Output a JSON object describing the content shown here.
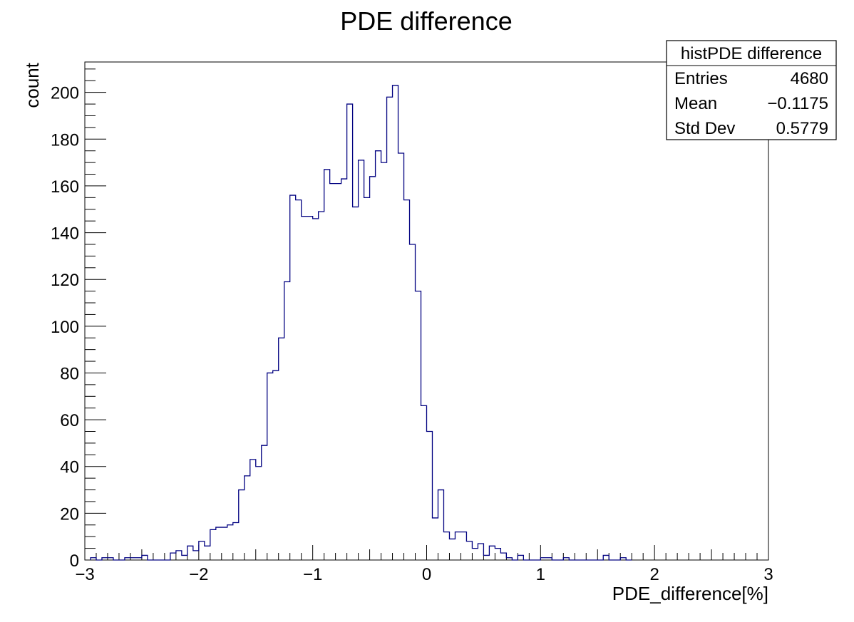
{
  "chart_data": {
    "type": "histogram",
    "title": "PDE difference",
    "xlabel": "PDE_difference[%]",
    "ylabel": "count",
    "xlim": [
      -3,
      3
    ],
    "ylim": [
      0,
      213
    ],
    "bin_width": 0.05,
    "bin_start": -2.95,
    "x_ticks": [
      -3,
      -2,
      -1,
      0,
      1,
      2,
      3
    ],
    "x_tick_labels": [
      "−3",
      "−2",
      "−1",
      "0",
      "1",
      "2",
      "3"
    ],
    "y_ticks": [
      0,
      20,
      40,
      60,
      80,
      100,
      120,
      140,
      160,
      180,
      200
    ],
    "y_tick_labels": [
      "0",
      "20",
      "40",
      "60",
      "80",
      "100",
      "120",
      "140",
      "160",
      "180",
      "200"
    ],
    "grid": false,
    "line_color": "#000080",
    "values": [
      1,
      0,
      1,
      1,
      0,
      0,
      1,
      1,
      1,
      2,
      0,
      0,
      0,
      0,
      3,
      4,
      2,
      6,
      4,
      8,
      6,
      13,
      14,
      14,
      15,
      16,
      30,
      36,
      43,
      40,
      49,
      80,
      81,
      95,
      119,
      156,
      154,
      147,
      147,
      146,
      149,
      167,
      161,
      161,
      163,
      195,
      151,
      171,
      155,
      164,
      175,
      170,
      198,
      203,
      174,
      154,
      135,
      115,
      66,
      55,
      18,
      30,
      12,
      9,
      12,
      12,
      8,
      5,
      7,
      2,
      6,
      5,
      3,
      1,
      0,
      2,
      0,
      0,
      0,
      1,
      1,
      0,
      0,
      1,
      0,
      0,
      0,
      0,
      0,
      0,
      2,
      0,
      0,
      1,
      0
    ],
    "legend_position": "top-right",
    "stats": {
      "name": "histPDE difference",
      "rows": [
        {
          "label": "Entries",
          "value": "4680"
        },
        {
          "label": "Mean",
          "value": "−0.1175"
        },
        {
          "label": "Std Dev",
          "value": "0.5779"
        }
      ]
    }
  }
}
